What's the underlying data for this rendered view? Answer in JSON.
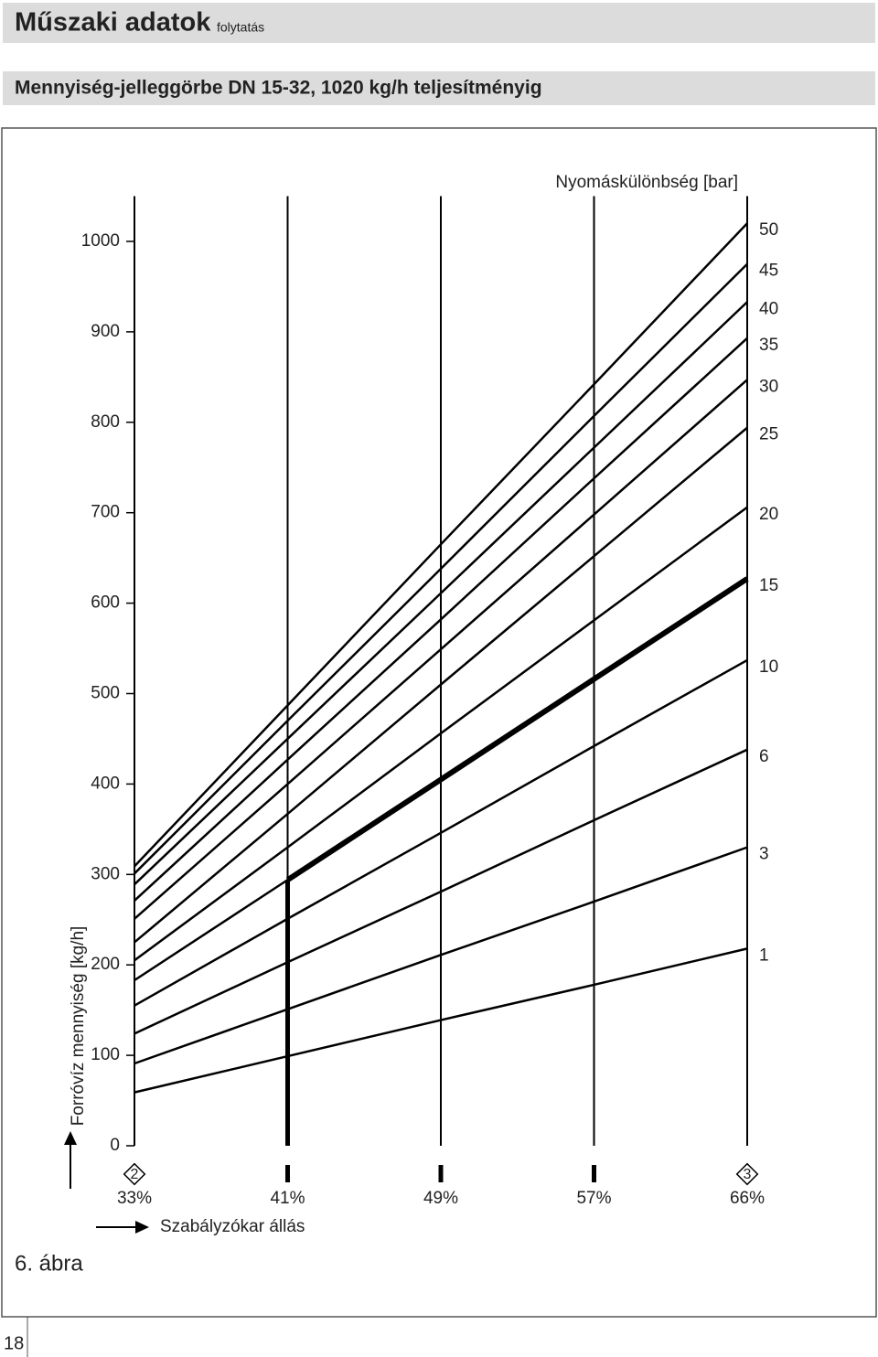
{
  "header": {
    "title": "Műszaki adatok",
    "subtitle": "folytatás"
  },
  "section_title": "Mennyiség-jelleggörbe DN 15-32, 1020 kg/h teljesítményig",
  "figure_label": "6. ábra",
  "page_number": "18",
  "chart_data": {
    "type": "line",
    "y_label": "Forróvíz mennyiség [kg/h]",
    "x_label": "Szabályzókar állás",
    "legend_title": "Nyomáskülönbség [bar]",
    "categories": [
      "33%",
      "41%",
      "49%",
      "57%",
      "66%"
    ],
    "position_markers": [
      "2",
      null,
      null,
      null,
      "3"
    ],
    "ylim": [
      0,
      1050
    ],
    "yticks": [
      0,
      100,
      200,
      300,
      400,
      500,
      600,
      700,
      800,
      900,
      1000
    ],
    "color": "#000000",
    "series": [
      {
        "name": "1",
        "values": [
          59,
          99,
          139,
          178,
          218
        ]
      },
      {
        "name": "3",
        "values": [
          91,
          151,
          211,
          270,
          330
        ]
      },
      {
        "name": "6",
        "values": [
          124,
          203,
          281,
          360,
          438
        ]
      },
      {
        "name": "10",
        "values": [
          155,
          251,
          346,
          442,
          537
        ]
      },
      {
        "name": "15",
        "values": [
          183,
          294,
          405,
          516,
          627
        ]
      },
      {
        "name": "20",
        "values": [
          205,
          330,
          456,
          581,
          706
        ]
      },
      {
        "name": "25",
        "values": [
          225,
          367,
          510,
          652,
          794
        ]
      },
      {
        "name": "30",
        "values": [
          251,
          400,
          549,
          698,
          847
        ]
      },
      {
        "name": "35",
        "values": [
          271,
          427,
          582,
          738,
          893
        ]
      },
      {
        "name": "40",
        "values": [
          289,
          450,
          611,
          772,
          933
        ]
      },
      {
        "name": "45",
        "values": [
          301,
          470,
          638,
          807,
          975
        ]
      },
      {
        "name": "50",
        "values": [
          309,
          487,
          665,
          842,
          1020
        ]
      }
    ]
  }
}
